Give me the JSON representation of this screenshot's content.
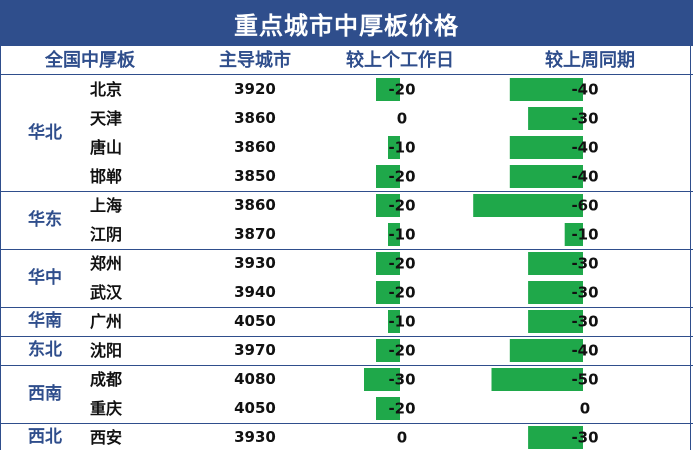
{
  "title": "重点城市中厚板价格",
  "headers": {
    "region": "全国中厚板",
    "city": "主导城市",
    "day": "较上个工作日",
    "week": "较上周同期"
  },
  "colors": {
    "bar": "#1fa84a",
    "header_bg": "#2f4e8c",
    "accent_text": "#2f4e8c"
  },
  "regions": [
    {
      "name": "华北"
    },
    {
      "name": "华东"
    },
    {
      "name": "华中"
    },
    {
      "name": "华南"
    },
    {
      "name": "东北"
    },
    {
      "name": "西南"
    },
    {
      "name": "西北"
    }
  ],
  "chart_data": {
    "type": "table",
    "columns": [
      "全国中厚板",
      "主导城市",
      "较上个工作日",
      "较上周同期"
    ],
    "rows": [
      {
        "region": "华北",
        "city": "北京",
        "price": 3920,
        "day": -20,
        "week": -40
      },
      {
        "region": "华北",
        "city": "天津",
        "price": 3860,
        "day": 0,
        "week": -30
      },
      {
        "region": "华北",
        "city": "唐山",
        "price": 3860,
        "day": -10,
        "week": -40
      },
      {
        "region": "华北",
        "city": "邯郸",
        "price": 3850,
        "day": -20,
        "week": -40
      },
      {
        "region": "华东",
        "city": "上海",
        "price": 3860,
        "day": -20,
        "week": -60
      },
      {
        "region": "华东",
        "city": "江阴",
        "price": 3870,
        "day": -10,
        "week": -10
      },
      {
        "region": "华中",
        "city": "郑州",
        "price": 3930,
        "day": -20,
        "week": -30
      },
      {
        "region": "华中",
        "city": "武汉",
        "price": 3940,
        "day": -20,
        "week": -30
      },
      {
        "region": "华南",
        "city": "广州",
        "price": 4050,
        "day": -10,
        "week": -30
      },
      {
        "region": "东北",
        "city": "沈阳",
        "price": 3970,
        "day": -20,
        "week": -40
      },
      {
        "region": "西南",
        "city": "成都",
        "price": 4080,
        "day": -30,
        "week": -50
      },
      {
        "region": "西南",
        "city": "重庆",
        "price": 4050,
        "day": -20,
        "week": 0
      },
      {
        "region": "西北",
        "city": "西安",
        "price": 3930,
        "day": 0,
        "week": -30
      }
    ]
  }
}
